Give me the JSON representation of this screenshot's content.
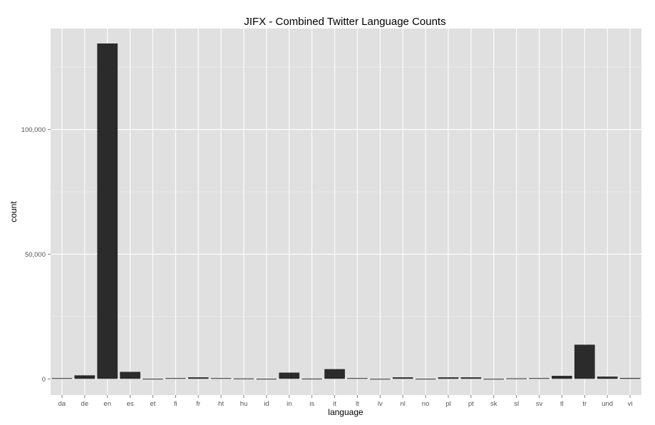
{
  "chart_data": {
    "type": "bar",
    "title": "JIFX - Combined Twitter Language Counts",
    "xlabel": "language",
    "ylabel": "count",
    "categories": [
      "da",
      "de",
      "en",
      "es",
      "et",
      "fi",
      "fr",
      "ht",
      "hu",
      "id",
      "in",
      "is",
      "it",
      "lt",
      "lv",
      "nl",
      "no",
      "pl",
      "pt",
      "sk",
      "sl",
      "sv",
      "tl",
      "tr",
      "und",
      "vi"
    ],
    "values": [
      300,
      1400,
      134500,
      2800,
      50,
      300,
      600,
      300,
      150,
      50,
      2500,
      100,
      3900,
      300,
      30,
      600,
      50,
      600,
      600,
      30,
      200,
      300,
      1200,
      13700,
      900,
      350
    ],
    "ylim": [
      -6500,
      140500
    ],
    "yticks": [
      0,
      50000,
      100000
    ],
    "ytick_labels": [
      "0",
      "50,000",
      "100,000"
    ],
    "grid": true,
    "legend": "none",
    "colors": {
      "panel_background": "#e0e0e0",
      "grid_major": "#ffffff",
      "grid_minor": "#ebebeb",
      "bar_fill": "#2b2b2b",
      "tick_text": "#555555"
    }
  }
}
